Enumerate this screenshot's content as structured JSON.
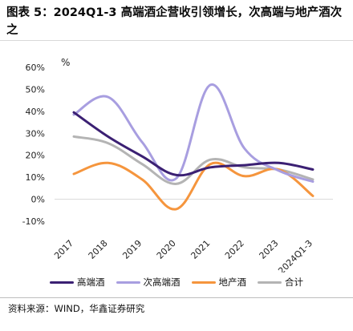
{
  "title": "图表 5：2024Q1-3 高端酒企营收引领增长，次高端与地产酒次之",
  "source": "资料来源：WIND，华鑫证券研究",
  "chart_data": {
    "type": "line",
    "unit_label": "%",
    "categories": [
      "2017",
      "2018",
      "2019",
      "2020",
      "2021",
      "2022",
      "2023",
      "2024Q1-3"
    ],
    "ylim": [
      -10,
      60
    ],
    "yticks": [
      "-10%",
      "0%",
      "10%",
      "20%",
      "30%",
      "40%",
      "50%",
      "60%"
    ],
    "ytick_values": [
      -10,
      0,
      10,
      20,
      30,
      40,
      50,
      60
    ],
    "grid": false,
    "legend_position": "bottom",
    "series": [
      {
        "name": "高端酒",
        "color": "#3b2073",
        "values": [
          39.5,
          28.5,
          19.5,
          11.0,
          14.5,
          15.5,
          16.5,
          13.5
        ]
      },
      {
        "name": "次高端酒",
        "color": "#a89ee0",
        "values": [
          38.5,
          46.5,
          26.0,
          9.5,
          52.0,
          23.0,
          13.0,
          8.0
        ]
      },
      {
        "name": "地产酒",
        "color": "#f5953d",
        "values": [
          11.5,
          16.5,
          9.0,
          -4.5,
          16.0,
          10.5,
          13.5,
          1.5
        ]
      },
      {
        "name": "合计",
        "color": "#b4b4b4",
        "values": [
          28.5,
          25.5,
          16.0,
          7.0,
          18.0,
          14.5,
          13.5,
          9.0
        ]
      }
    ]
  }
}
